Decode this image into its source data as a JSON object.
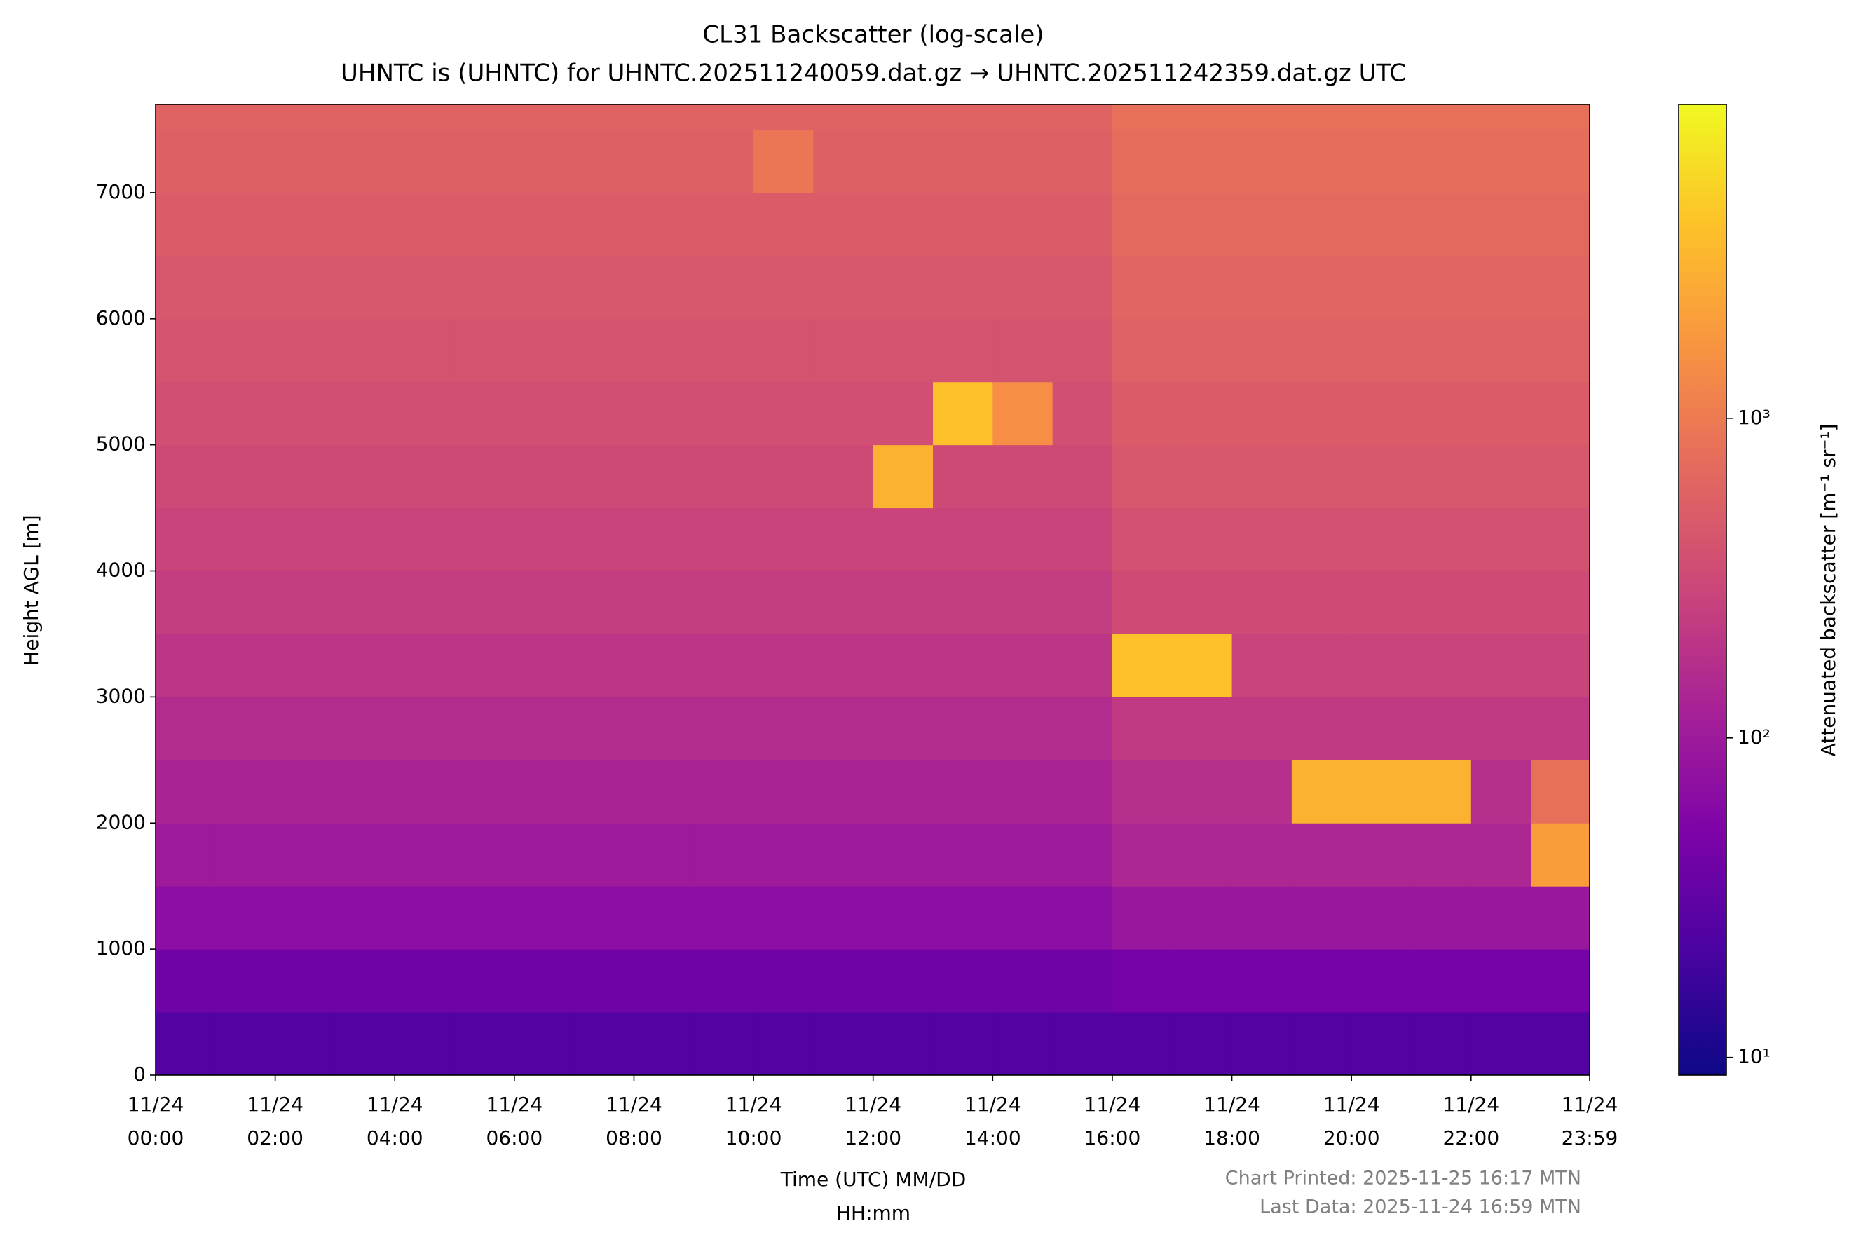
{
  "chart_data": {
    "type": "heatmap",
    "title": "CL31 Backscatter (log-scale)",
    "subtitle": "UHNTC is (UHNTC) for UHNTC.202511240059.dat.gz → UHNTC.202511242359.dat.gz UTC",
    "ylabel": "Height AGL [m]",
    "xlabel": [
      "Time (UTC) MM/DD",
      "HH:mm"
    ],
    "colorbar_label": "Attenuated backscatter [m⁻¹ sr⁻¹]",
    "footer": [
      "Chart Printed: 2025-11-25 16:17 MTN",
      "Last Data: 2025-11-24 16:59 MTN"
    ],
    "colormap": "plasma",
    "color_scale": "log",
    "clim": [
      8.8,
      9600
    ],
    "cticks": [
      {
        "value": 10,
        "label": "10¹"
      },
      {
        "value": 100,
        "label": "10²"
      },
      {
        "value": 1000,
        "label": "10³"
      }
    ],
    "xlim": [
      "11/24 00:00",
      "11/24 23:59"
    ],
    "xticks": [
      {
        "value": "11/24 00:00",
        "label": [
          "11/24",
          "00:00"
        ]
      },
      {
        "value": "11/24 02:00",
        "label": [
          "11/24",
          "02:00"
        ]
      },
      {
        "value": "11/24 04:00",
        "label": [
          "11/24",
          "04:00"
        ]
      },
      {
        "value": "11/24 06:00",
        "label": [
          "11/24",
          "06:00"
        ]
      },
      {
        "value": "11/24 08:00",
        "label": [
          "11/24",
          "08:00"
        ]
      },
      {
        "value": "11/24 10:00",
        "label": [
          "11/24",
          "10:00"
        ]
      },
      {
        "value": "11/24 12:00",
        "label": [
          "11/24",
          "12:00"
        ]
      },
      {
        "value": "11/24 14:00",
        "label": [
          "11/24",
          "14:00"
        ]
      },
      {
        "value": "11/24 16:00",
        "label": [
          "11/24",
          "16:00"
        ]
      },
      {
        "value": "11/24 18:00",
        "label": [
          "11/24",
          "18:00"
        ]
      },
      {
        "value": "11/24 20:00",
        "label": [
          "11/24",
          "20:00"
        ]
      },
      {
        "value": "11/24 22:00",
        "label": [
          "11/24",
          "22:00"
        ]
      },
      {
        "value": "11/24 23:59",
        "label": [
          "11/24",
          "23:59"
        ]
      }
    ],
    "ylim": [
      0,
      7700
    ],
    "yticks": [
      0,
      1000,
      2000,
      3000,
      4000,
      5000,
      6000,
      7000
    ],
    "x_edges": [
      "11/24 00:00",
      "11/24 01:00",
      "11/24 02:00",
      "11/24 03:00",
      "11/24 04:00",
      "11/24 05:00",
      "11/24 06:00",
      "11/24 07:00",
      "11/24 08:00",
      "11/24 09:00",
      "11/24 10:00",
      "11/24 11:00",
      "11/24 12:00",
      "11/24 13:00",
      "11/24 14:00",
      "11/24 15:00",
      "11/24 16:00",
      "11/24 17:00",
      "11/24 18:00",
      "11/24 19:00",
      "11/24 20:00",
      "11/24 21:00",
      "11/24 22:00",
      "11/24 23:00",
      "11/24 23:59"
    ],
    "y_edges": [
      0,
      500,
      1000,
      1500,
      2000,
      2500,
      3000,
      3500,
      4000,
      4500,
      5000,
      5500,
      6000,
      6500,
      7000,
      7500,
      7700
    ],
    "z": [
      [
        25,
        25,
        25,
        25,
        25,
        25,
        25,
        25,
        25,
        25,
        25,
        25,
        25,
        25,
        25,
        25,
        25,
        25,
        25,
        25,
        25,
        25,
        25,
        25
      ],
      [
        40,
        40,
        40,
        40,
        40,
        40,
        40,
        40,
        40,
        40,
        40,
        40,
        40,
        40,
        40,
        40,
        45,
        45,
        45,
        45,
        45,
        45,
        45,
        45
      ],
      [
        70,
        70,
        70,
        70,
        70,
        70,
        70,
        70,
        70,
        70,
        70,
        70,
        70,
        70,
        70,
        70,
        90,
        90,
        90,
        90,
        90,
        90,
        90,
        90
      ],
      [
        100,
        100,
        100,
        100,
        100,
        100,
        100,
        100,
        100,
        100,
        100,
        100,
        100,
        100,
        100,
        100,
        140,
        140,
        140,
        140,
        140,
        140,
        140,
        2000
      ],
      [
        130,
        130,
        130,
        130,
        130,
        130,
        130,
        130,
        130,
        130,
        130,
        130,
        130,
        130,
        130,
        130,
        170,
        170,
        170,
        3000,
        3000,
        3000,
        170,
        800
      ],
      [
        160,
        160,
        160,
        160,
        160,
        160,
        160,
        160,
        160,
        160,
        160,
        160,
        160,
        160,
        160,
        160,
        220,
        220,
        220,
        220,
        220,
        220,
        220,
        220
      ],
      [
        200,
        200,
        200,
        200,
        200,
        200,
        200,
        200,
        200,
        200,
        200,
        200,
        200,
        200,
        200,
        200,
        4000,
        4000,
        280,
        280,
        280,
        280,
        280,
        280
      ],
      [
        240,
        240,
        240,
        240,
        240,
        240,
        240,
        240,
        240,
        240,
        240,
        240,
        240,
        240,
        240,
        240,
        330,
        330,
        330,
        330,
        330,
        330,
        330,
        330
      ],
      [
        280,
        280,
        280,
        280,
        280,
        280,
        280,
        280,
        280,
        280,
        280,
        280,
        280,
        280,
        280,
        280,
        380,
        380,
        380,
        380,
        380,
        380,
        380,
        380
      ],
      [
        320,
        320,
        320,
        320,
        320,
        320,
        320,
        320,
        320,
        320,
        320,
        320,
        3000,
        320,
        320,
        320,
        450,
        450,
        450,
        450,
        450,
        450,
        450,
        450
      ],
      [
        360,
        360,
        360,
        360,
        360,
        360,
        360,
        360,
        360,
        360,
        360,
        360,
        360,
        4000,
        1500,
        360,
        500,
        500,
        500,
        500,
        500,
        500,
        500,
        500
      ],
      [
        400,
        400,
        400,
        400,
        400,
        400,
        400,
        400,
        400,
        400,
        400,
        400,
        400,
        400,
        400,
        400,
        560,
        560,
        560,
        560,
        560,
        560,
        560,
        560
      ],
      [
        450,
        450,
        450,
        450,
        450,
        450,
        450,
        450,
        450,
        450,
        450,
        450,
        450,
        450,
        450,
        450,
        620,
        620,
        620,
        620,
        620,
        620,
        620,
        620
      ],
      [
        500,
        500,
        500,
        500,
        500,
        500,
        500,
        500,
        500,
        500,
        500,
        500,
        500,
        500,
        500,
        500,
        680,
        680,
        680,
        680,
        680,
        680,
        680,
        680
      ],
      [
        550,
        550,
        550,
        550,
        550,
        550,
        550,
        550,
        550,
        550,
        900,
        550,
        550,
        550,
        550,
        550,
        750,
        750,
        750,
        750,
        750,
        750,
        750,
        750
      ],
      [
        600,
        600,
        600,
        600,
        600,
        600,
        600,
        600,
        600,
        600,
        600,
        600,
        600,
        600,
        600,
        600,
        800,
        800,
        800,
        800,
        800,
        800,
        800,
        800
      ]
    ]
  }
}
